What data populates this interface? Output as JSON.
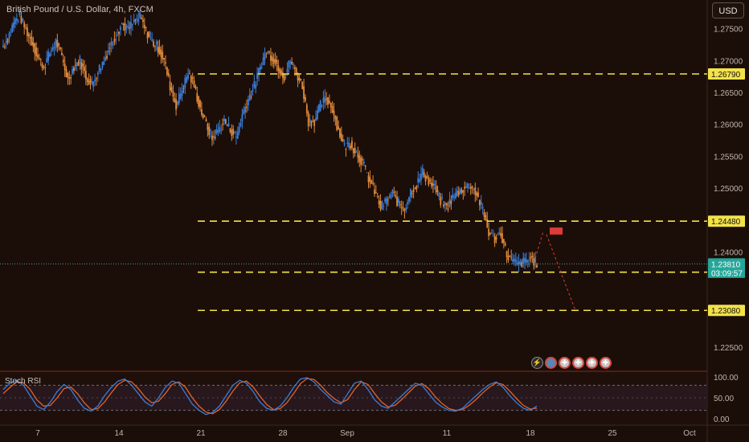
{
  "header": {
    "title": "British Pound / U.S. Dollar, 4h, FXCM",
    "currency_button": "USD"
  },
  "oscillator": {
    "title": "Stoch RSI",
    "ticks": [
      "100.00",
      "50.00",
      "0.00"
    ]
  },
  "colors": {
    "background": "#1b0e08",
    "up_candle": "#3b7dd8",
    "down_candle": "#e08a3c",
    "level_line": "#f2e24a",
    "current_price_bg": "#26a69a",
    "entry_box": "#e03a3a",
    "stoch_k": "#3b7dd8",
    "stoch_d": "#e0632a"
  },
  "icons": [
    "lightning-icon",
    "cloud-icon",
    "flag-icon",
    "flag-icon",
    "flag-icon",
    "flag-icon"
  ],
  "chart_data": {
    "type": "candlestick",
    "title": "British Pound / U.S. Dollar, 4h, FXCM",
    "xlabel": "",
    "ylabel": "",
    "currency": "USD",
    "x_tick_labels": [
      "7",
      "14",
      "21",
      "28",
      "Sep",
      "11",
      "18",
      "25",
      "Oct"
    ],
    "y_tick_labels": [
      "1.27500",
      "1.27000",
      "1.26500",
      "1.26000",
      "1.25500",
      "1.25000",
      "1.24000",
      "1.22500"
    ],
    "ylim": [
      1.2215,
      1.2795
    ],
    "grid": false,
    "horizontal_levels": [
      {
        "label": "1.26790",
        "value": 1.2679
      },
      {
        "label": "1.24480",
        "value": 1.2448
      },
      {
        "label": "1.23680",
        "value": 1.2368
      },
      {
        "label": "1.23080",
        "value": 1.2308
      }
    ],
    "current_price": {
      "label": "1.23810",
      "value": 1.2381,
      "countdown": "03:09:57"
    },
    "projection": {
      "entry_zone": [
        1.2427,
        1.2438
      ],
      "target": 1.2308
    },
    "price_path": [
      1.272,
      1.2735,
      1.276,
      1.277,
      1.2748,
      1.273,
      1.2705,
      1.269,
      1.2712,
      1.273,
      1.2705,
      1.267,
      1.269,
      1.27,
      1.2675,
      1.2662,
      1.2685,
      1.27,
      1.2722,
      1.274,
      1.2758,
      1.2748,
      1.276,
      1.2768,
      1.2745,
      1.273,
      1.272,
      1.27,
      1.266,
      1.263,
      1.2655,
      1.268,
      1.266,
      1.2625,
      1.26,
      1.2578,
      1.259,
      1.2605,
      1.2592,
      1.258,
      1.2615,
      1.264,
      1.266,
      1.269,
      1.2715,
      1.2705,
      1.269,
      1.2675,
      1.27,
      1.268,
      1.266,
      1.2605,
      1.2605,
      1.263,
      1.264,
      1.2625,
      1.259,
      1.2565,
      1.257,
      1.2555,
      1.254,
      1.2515,
      1.2495,
      1.247,
      1.248,
      1.2492,
      1.2475,
      1.2468,
      1.2495,
      1.2505,
      1.2525,
      1.251,
      1.25,
      1.248,
      1.247,
      1.2485,
      1.2495,
      1.25,
      1.2505,
      1.249,
      1.2465,
      1.243,
      1.242,
      1.243,
      1.2395,
      1.2385,
      1.238,
      1.2385,
      1.239,
      1.2381
    ],
    "stoch_rsi": {
      "k": [
        70,
        85,
        92,
        80,
        55,
        30,
        22,
        40,
        65,
        82,
        70,
        45,
        25,
        18,
        30,
        55,
        75,
        90,
        95,
        80,
        60,
        40,
        30,
        50,
        75,
        90,
        85,
        60,
        35,
        20,
        10,
        15,
        30,
        55,
        80,
        92,
        85,
        65,
        40,
        25,
        20,
        30,
        50,
        75,
        95,
        98,
        88,
        70,
        55,
        40,
        35,
        60,
        85,
        90,
        70,
        45,
        30,
        25,
        40,
        55,
        70,
        85,
        80,
        60,
        40,
        28,
        20,
        18,
        25,
        40,
        55,
        70,
        82,
        88,
        75,
        55,
        38,
        25,
        20,
        30
      ],
      "d": [
        60,
        75,
        88,
        86,
        70,
        45,
        30,
        32,
        50,
        72,
        76,
        60,
        38,
        22,
        24,
        40,
        62,
        82,
        92,
        88,
        72,
        52,
        38,
        42,
        60,
        82,
        88,
        75,
        50,
        30,
        16,
        12,
        22,
        42,
        66,
        86,
        90,
        76,
        54,
        34,
        22,
        24,
        38,
        60,
        84,
        96,
        94,
        80,
        62,
        48,
        38,
        46,
        70,
        88,
        82,
        60,
        40,
        28,
        32,
        46,
        62,
        78,
        84,
        72,
        52,
        36,
        24,
        20,
        22,
        32,
        46,
        62,
        76,
        86,
        82,
        66,
        48,
        32,
        23,
        25
      ],
      "ylim": [
        0,
        100
      ],
      "bands": [
        20,
        80
      ]
    }
  }
}
